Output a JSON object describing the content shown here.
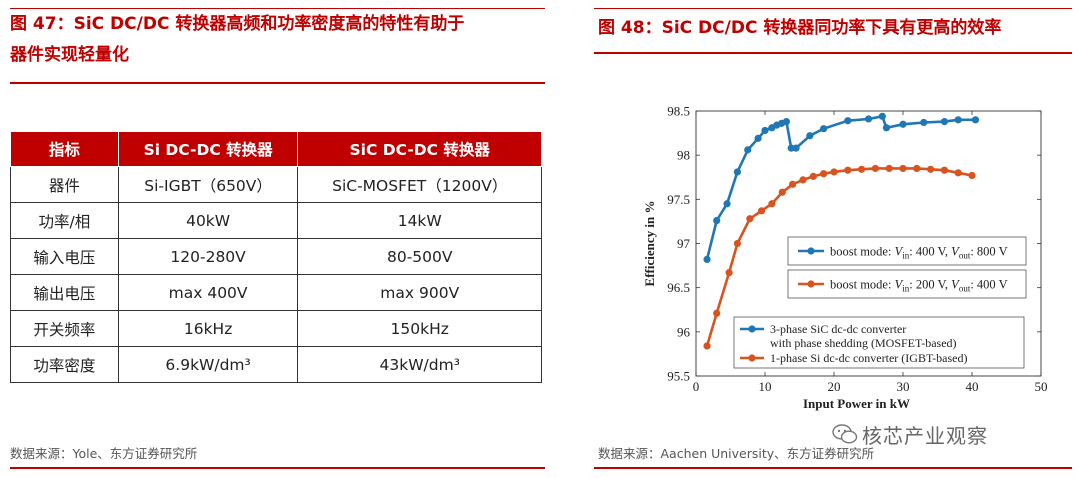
{
  "left_panel": {
    "title_line1": "图 47：SiC DC/DC 转换器高频和功率密度高的特性有助于",
    "title_line2": "器件实现轻量化",
    "table": {
      "headers": [
        "指标",
        "Si DC-DC 转换器",
        "SiC DC-DC 转换器"
      ],
      "rows": [
        [
          "器件",
          "Si-IGBT（650V）",
          "SiC-MOSFET（1200V）"
        ],
        [
          "功率/相",
          "40kW",
          "14kW"
        ],
        [
          "输入电压",
          "120-280V",
          "80-500V"
        ],
        [
          "输出电压",
          "max 400V",
          "max 900V"
        ],
        [
          "开关频率",
          "16kHz",
          "150kHz"
        ],
        [
          "功率密度",
          "6.9kW/dm³",
          "43kW/dm³"
        ]
      ]
    },
    "source": "数据来源：Yole、东方证券研究所"
  },
  "right_panel": {
    "title": "图 48：SiC DC/DC 转换器同功率下具有更高的效率",
    "source": "数据来源：Aachen University、东方证券研究所",
    "watermark": "核芯产业观察"
  },
  "colors": {
    "brand_red": "#c00000",
    "series_blue": "#1f77b4",
    "series_orange": "#d9531e"
  },
  "chart_data": {
    "type": "line",
    "title": "",
    "xlabel": "Input Power in kW",
    "ylabel": "Efficiency in %",
    "xlim": [
      0,
      50
    ],
    "ylim": [
      95.5,
      98.5
    ],
    "xticks": [
      0,
      10,
      20,
      30,
      40,
      50
    ],
    "yticks": [
      95.5,
      96,
      96.5,
      97,
      97.5,
      98,
      98.5
    ],
    "x_tick_labels": [
      "0",
      "10",
      "20",
      "30",
      "40",
      "50"
    ],
    "y_tick_labels": [
      "95.5",
      "96",
      "96.5",
      "97",
      "97.5",
      "98",
      "98.5"
    ],
    "annotation_boxes": [
      {
        "series": "SiC",
        "text": "boost mode: V_in: 400 V, V_out: 800 V",
        "pre": "boost mode: ",
        "v1": "V",
        "s1": "in",
        "mid": ": 400 V, ",
        "v2": "V",
        "s2": "out",
        "post": ": 800 V"
      },
      {
        "series": "Si",
        "text": "boost mode: V_in: 200 V, V_out: 400 V",
        "pre": "boost mode: ",
        "v1": "V",
        "s1": "in",
        "mid": ": 200 V, ",
        "v2": "V",
        "s2": "out",
        "post": ": 400 V"
      }
    ],
    "legend_position": "bottom-right",
    "series": [
      {
        "name": "3-phase SiC dc-dc converter with phase shedding (MOSFET-based)",
        "legend_line1": "3-phase SiC dc-dc converter",
        "legend_line2": "with phase shedding (MOSFET-based)",
        "color": "#1f77b4",
        "x": [
          1.6,
          3.0,
          4.5,
          6.0,
          7.5,
          9.0,
          10.0,
          11.0,
          11.7,
          12.4,
          13.1,
          13.8,
          14.5,
          16.5,
          18.5,
          22.0,
          25.0,
          27.0,
          27.6,
          30.0,
          33.0,
          36.0,
          38.0,
          40.5
        ],
        "y": [
          96.82,
          97.26,
          97.45,
          97.81,
          98.06,
          98.19,
          98.28,
          98.31,
          98.34,
          98.36,
          98.38,
          98.08,
          98.08,
          98.22,
          98.3,
          98.39,
          98.41,
          98.44,
          98.31,
          98.35,
          98.37,
          98.38,
          98.4,
          98.4
        ]
      },
      {
        "name": "1-phase Si dc-dc converter (IGBT-based)",
        "legend_line1": "1-phase Si dc-dc converter (IGBT-based)",
        "color": "#d9531e",
        "x": [
          1.6,
          3.0,
          4.8,
          6.0,
          7.8,
          9.5,
          11.0,
          12.5,
          14.0,
          15.5,
          17.0,
          18.5,
          20.0,
          22.0,
          24.0,
          26.0,
          28.0,
          30.0,
          32.0,
          34.0,
          36.0,
          38.0,
          40.0
        ],
        "y": [
          95.84,
          96.21,
          96.67,
          97.0,
          97.28,
          97.37,
          97.45,
          97.58,
          97.67,
          97.72,
          97.76,
          97.79,
          97.81,
          97.83,
          97.84,
          97.85,
          97.85,
          97.85,
          97.85,
          97.84,
          97.83,
          97.8,
          97.77
        ]
      }
    ]
  }
}
